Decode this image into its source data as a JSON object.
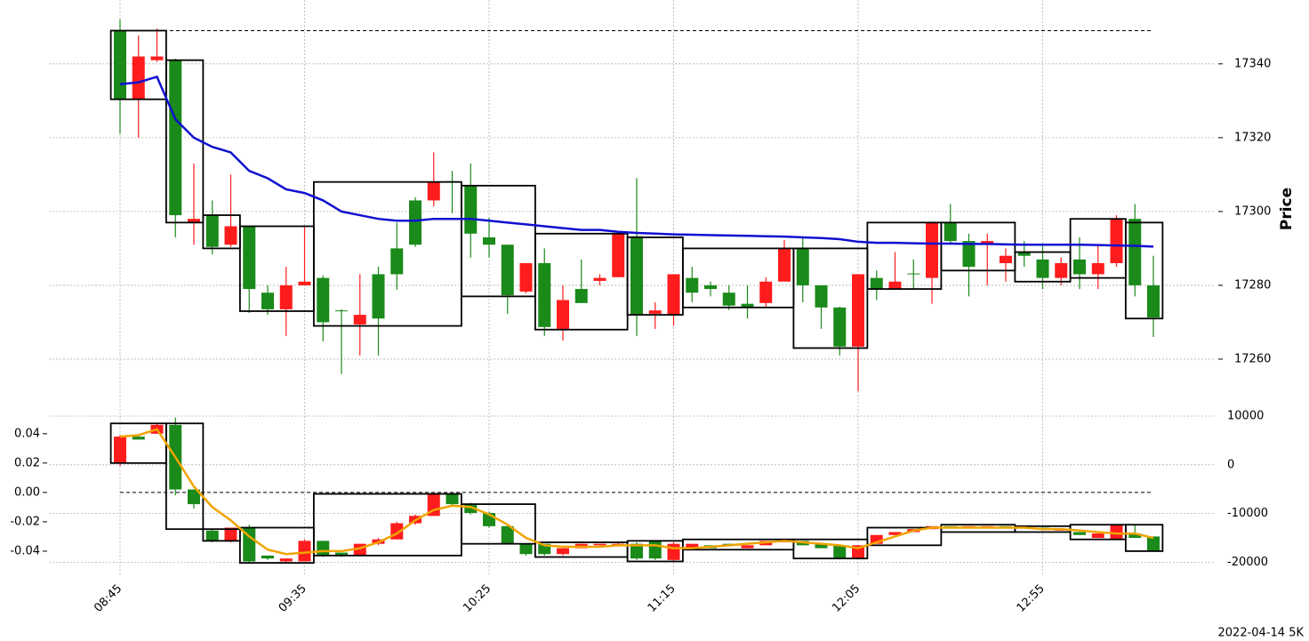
{
  "chart_data": {
    "type": "candlestick",
    "footer": "2022-04-14 5K",
    "categories": [
      "08:45",
      null,
      null,
      null,
      null,
      null,
      null,
      null,
      null,
      null,
      "09:35",
      null,
      null,
      null,
      null,
      null,
      null,
      null,
      null,
      null,
      "10:25",
      null,
      null,
      null,
      null,
      null,
      null,
      null,
      null,
      null,
      "11:15",
      null,
      null,
      null,
      null,
      null,
      null,
      null,
      null,
      null,
      "12:05",
      null,
      null,
      null,
      null,
      null,
      null,
      null,
      null,
      null,
      "12:55",
      null,
      null,
      null,
      null,
      null,
      null
    ],
    "grid": true,
    "panels": [
      {
        "ylabel": "Price",
        "ylim": [
          17246.5,
          17357.3
        ],
        "yticks": [
          17260,
          17280,
          17300,
          17320,
          17340
        ],
        "up_color": "#1a8a1a",
        "down_color": "#ff1c1c",
        "open": [
          17330.4,
          17342,
          17342,
          17299,
          17298,
          17290.4,
          17296,
          17279,
          17273.5,
          17280,
          17281,
          17270,
          17273,
          17272,
          17271,
          17283,
          17291,
          17308,
          17308,
          17294,
          17291,
          17277.3,
          17286,
          17268.7,
          17276,
          17275.2,
          17282,
          17294,
          17272,
          17273.2,
          17283,
          17278,
          17279,
          17274.5,
          17274,
          17281,
          17290,
          17280,
          17274,
          17263.4,
          17283,
          17279,
          17281,
          17283,
          17297,
          17292,
          17285,
          17292,
          17288,
          17288,
          17282,
          17286,
          17283,
          17286,
          17298,
          17280,
          17271.3
        ],
        "high": [
          17352,
          17347.7,
          17349.6,
          17341.4,
          17313,
          17303,
          17310,
          17296,
          17280,
          17285,
          17296,
          17282.7,
          17273.5,
          17283,
          17285,
          17297,
          17303.9,
          17316,
          17311,
          17313,
          17298.3,
          17291,
          17286,
          17290,
          17280,
          17287,
          17283,
          17294.2,
          17309,
          17275.4,
          17283,
          17285,
          17281,
          17280,
          17280,
          17282.2,
          17292.3,
          17293.3,
          17280,
          17274.2,
          17283.1,
          17284,
          17289,
          17287,
          17297.1,
          17302,
          17294,
          17294,
          17290,
          17292,
          17291,
          17287.5,
          17293,
          17291,
          17299,
          17302,
          17288
        ],
        "low": [
          17321,
          17320,
          17340.5,
          17293,
          17291,
          17288.4,
          17290.4,
          17272.5,
          17272,
          17266.3,
          17280,
          17264.8,
          17256,
          17261,
          17261,
          17278.8,
          17290.4,
          17301.4,
          17299.5,
          17287.5,
          17287.5,
          17272.3,
          17277.8,
          17266.3,
          17265,
          17275.2,
          17280,
          17282.2,
          17266.3,
          17268.2,
          17269,
          17275.4,
          17277,
          17273.3,
          17271,
          17274.2,
          17281.2,
          17275.4,
          17268.2,
          17261,
          17251.3,
          17276,
          17279,
          17279,
          17275,
          17291,
          17277,
          17280,
          17281,
          17285,
          17279,
          17280,
          17279,
          17279,
          17285,
          17277,
          17266
        ],
        "close": [
          17348.9,
          17330.4,
          17341,
          17341,
          17297,
          17299,
          17291,
          17296,
          17278,
          17273.5,
          17280,
          17282,
          17273.2,
          17269.4,
          17283,
          17290,
          17303,
          17303,
          17308.2,
          17307.2,
          17293,
          17291,
          17278.3,
          17286,
          17268.2,
          17279,
          17281.2,
          17282.2,
          17293.3,
          17272.3,
          17272,
          17282,
          17280,
          17278,
          17275,
          17275.2,
          17281,
          17290,
          17280,
          17274,
          17263.4,
          17282,
          17279,
          17283.2,
          17282,
          17297,
          17292,
          17291,
          17286,
          17289,
          17287,
          17282,
          17287,
          17283,
          17286,
          17298,
          17280
        ],
        "line": {
          "color": "#1010d0",
          "values": [
            17334.5,
            17335,
            17336.5,
            17325,
            17320,
            17317.5,
            17316,
            17311,
            17309,
            17306,
            17305,
            17303,
            17300,
            17299,
            17298,
            17297.5,
            17297.5,
            17298,
            17298,
            17298,
            17297.5,
            17297,
            17296.5,
            17296,
            17295.5,
            17295,
            17295,
            17294.5,
            17294.2,
            17294,
            17293.8,
            17293.7,
            17293.6,
            17293.5,
            17293.4,
            17293.3,
            17293.2,
            17293,
            17292.8,
            17292.5,
            17291.8,
            17291.5,
            17291.5,
            17291.4,
            17291.3,
            17291.3,
            17291.2,
            17291.2,
            17291.1,
            17291,
            17291,
            17291,
            17291,
            17290.9,
            17290.8,
            17290.7,
            17290.5
          ]
        },
        "box_high": [
          17349,
          17349,
          17349,
          17341,
          17341,
          17299,
          17299,
          17296,
          17296,
          17296,
          17296,
          17308,
          17308,
          17308,
          17308,
          17308,
          17308,
          17308,
          17308,
          17307,
          17307,
          17307,
          17307,
          17294,
          17294,
          17294,
          17294,
          17294,
          17293,
          17293,
          17293,
          17290,
          17290,
          17290,
          17290,
          17290,
          17290,
          17290,
          17290,
          17290,
          17290,
          17297,
          17297,
          17297,
          17297,
          17297,
          17297,
          17297,
          17297,
          17289,
          17289,
          17289,
          17298,
          17298,
          17298,
          17297,
          17297
        ],
        "box_low": [
          17330.4,
          17330.4,
          17330.4,
          17297,
          17297,
          17290,
          17290,
          17273,
          17273,
          17273,
          17273,
          17269,
          17269,
          17269,
          17269,
          17269,
          17269,
          17269,
          17269,
          17277,
          17277,
          17277,
          17277,
          17268,
          17268,
          17268,
          17268,
          17268,
          17272,
          17272,
          17272,
          17274,
          17274,
          17274,
          17274,
          17274,
          17274,
          17263,
          17263,
          17263,
          17263,
          17279,
          17279,
          17279,
          17279,
          17284,
          17284,
          17284,
          17284,
          17281,
          17281,
          17281,
          17282,
          17282,
          17282,
          17271,
          17271
        ],
        "ref_line": 17349
      },
      {
        "ylim": [
          -0.057,
          0.052
        ],
        "yticks": [
          -0.04,
          -0.02,
          {
            "value": 0,
            "label": "0.00"
          },
          0.02,
          0.04
        ],
        "y2lim": [
          -22850,
          10000
        ],
        "y2ticks": [
          -20000,
          -10000,
          0,
          10000
        ],
        "up_color": "#1a8a1a",
        "down_color": "#ff1c1c",
        "open": [
          0.038,
          0.036,
          0.046,
          0.002,
          -0.008,
          -0.033,
          -0.024,
          -0.047,
          -0.045,
          -0.045,
          -0.033,
          -0.043,
          -0.043,
          -0.035,
          -0.032,
          -0.021,
          -0.016,
          -0.001,
          -0.008,
          -0.014,
          -0.023,
          -0.035,
          -0.042,
          -0.042,
          -0.038,
          -0.035,
          -0.035,
          -0.035,
          -0.045,
          -0.045,
          -0.035,
          -0.035,
          -0.038,
          -0.036,
          -0.036,
          -0.033,
          -0.032,
          -0.036,
          -0.038,
          -0.045,
          -0.036,
          -0.029,
          -0.027,
          -0.025,
          -0.023,
          -0.024,
          -0.023,
          -0.023,
          -0.024,
          -0.024,
          -0.025,
          -0.025,
          -0.029,
          -0.028,
          -0.022,
          -0.031,
          -0.04
        ],
        "high": [
          0.039,
          0.039,
          0.047,
          0.051,
          0.002,
          -0.025,
          -0.024,
          -0.022,
          -0.043,
          -0.045,
          -0.032,
          -0.033,
          -0.041,
          -0.035,
          -0.031,
          -0.02,
          -0.015,
          0.0,
          -0.001,
          -0.007,
          -0.013,
          -0.022,
          -0.035,
          -0.035,
          -0.038,
          -0.035,
          -0.035,
          -0.034,
          -0.034,
          -0.033,
          -0.034,
          -0.035,
          -0.036,
          -0.035,
          -0.036,
          -0.033,
          -0.032,
          -0.033,
          -0.035,
          -0.036,
          -0.036,
          -0.029,
          -0.027,
          -0.025,
          -0.023,
          -0.023,
          -0.023,
          -0.023,
          -0.023,
          -0.023,
          -0.024,
          -0.025,
          -0.027,
          -0.028,
          -0.022,
          -0.022,
          -0.03
        ],
        "low": [
          0.018,
          0.036,
          0.04,
          -0.002,
          -0.011,
          -0.034,
          -0.034,
          -0.048,
          -0.046,
          -0.048,
          -0.047,
          -0.044,
          -0.044,
          -0.043,
          -0.036,
          -0.032,
          -0.022,
          -0.016,
          -0.009,
          -0.015,
          -0.024,
          -0.035,
          -0.043,
          -0.043,
          -0.043,
          -0.038,
          -0.036,
          -0.037,
          -0.046,
          -0.046,
          -0.047,
          -0.038,
          -0.038,
          -0.036,
          -0.038,
          -0.036,
          -0.034,
          -0.036,
          -0.038,
          -0.045,
          -0.045,
          -0.035,
          -0.029,
          -0.027,
          -0.025,
          -0.024,
          -0.024,
          -0.024,
          -0.024,
          -0.024,
          -0.025,
          -0.026,
          -0.029,
          -0.031,
          -0.032,
          -0.031,
          -0.04
        ],
        "close": [
          0.02,
          0.038,
          0.04,
          0.046,
          0.002,
          -0.026,
          -0.033,
          -0.024,
          -0.043,
          -0.047,
          -0.047,
          -0.033,
          -0.041,
          -0.043,
          -0.035,
          -0.032,
          -0.021,
          -0.016,
          -0.001,
          -0.008,
          -0.014,
          -0.023,
          -0.035,
          -0.035,
          -0.042,
          -0.038,
          -0.036,
          -0.036,
          -0.035,
          -0.033,
          -0.046,
          -0.038,
          -0.036,
          -0.035,
          -0.038,
          -0.036,
          -0.034,
          -0.033,
          -0.035,
          -0.036,
          -0.045,
          -0.035,
          -0.029,
          -0.027,
          -0.025,
          -0.023,
          -0.024,
          -0.024,
          -0.023,
          -0.023,
          -0.024,
          -0.026,
          -0.027,
          -0.031,
          -0.032,
          -0.028,
          -0.03
        ],
        "line": {
          "color": "#f0a400",
          "values": [
            0.038,
            0.039,
            0.043,
            0.024,
            0.004,
            -0.01,
            -0.019,
            -0.03,
            -0.039,
            -0.042,
            -0.041,
            -0.04,
            -0.04,
            -0.038,
            -0.034,
            -0.028,
            -0.019,
            -0.012,
            -0.009,
            -0.01,
            -0.015,
            -0.022,
            -0.031,
            -0.036,
            -0.037,
            -0.037,
            -0.037,
            -0.036,
            -0.036,
            -0.036,
            -0.038,
            -0.038,
            -0.037,
            -0.036,
            -0.035,
            -0.034,
            -0.033,
            -0.034,
            -0.035,
            -0.036,
            -0.038,
            -0.034,
            -0.03,
            -0.026,
            -0.024,
            -0.024,
            -0.024,
            -0.024,
            -0.024,
            -0.024,
            -0.025,
            -0.025,
            -0.026,
            -0.027,
            -0.028,
            -0.028,
            -0.031
          ]
        },
        "box_high": [
          0.047,
          0.047,
          0.047,
          0.047,
          0.047,
          -0.025,
          -0.025,
          -0.024,
          -0.024,
          -0.024,
          -0.024,
          -0.001,
          -0.001,
          -0.001,
          -0.001,
          -0.001,
          -0.001,
          -0.001,
          -0.001,
          -0.008,
          -0.008,
          -0.008,
          -0.008,
          -0.034,
          -0.034,
          -0.034,
          -0.034,
          -0.034,
          -0.033,
          -0.033,
          -0.033,
          -0.032,
          -0.032,
          -0.032,
          -0.032,
          -0.032,
          -0.032,
          -0.032,
          -0.032,
          -0.032,
          -0.032,
          -0.024,
          -0.024,
          -0.024,
          -0.024,
          -0.022,
          -0.022,
          -0.022,
          -0.022,
          -0.023,
          -0.023,
          -0.023,
          -0.022,
          -0.022,
          -0.022,
          -0.022,
          -0.022
        ],
        "box_low": [
          0.02,
          0.02,
          0.02,
          -0.025,
          -0.025,
          -0.033,
          -0.033,
          -0.048,
          -0.048,
          -0.048,
          -0.048,
          -0.043,
          -0.043,
          -0.043,
          -0.043,
          -0.043,
          -0.043,
          -0.043,
          -0.043,
          -0.035,
          -0.035,
          -0.035,
          -0.035,
          -0.044,
          -0.044,
          -0.044,
          -0.044,
          -0.044,
          -0.047,
          -0.047,
          -0.047,
          -0.039,
          -0.039,
          -0.039,
          -0.039,
          -0.039,
          -0.039,
          -0.045,
          -0.045,
          -0.045,
          -0.045,
          -0.036,
          -0.036,
          -0.036,
          -0.036,
          -0.027,
          -0.027,
          -0.027,
          -0.027,
          -0.027,
          -0.027,
          -0.027,
          -0.032,
          -0.032,
          -0.032,
          -0.04,
          -0.04
        ],
        "ref_line": 0
      }
    ]
  }
}
